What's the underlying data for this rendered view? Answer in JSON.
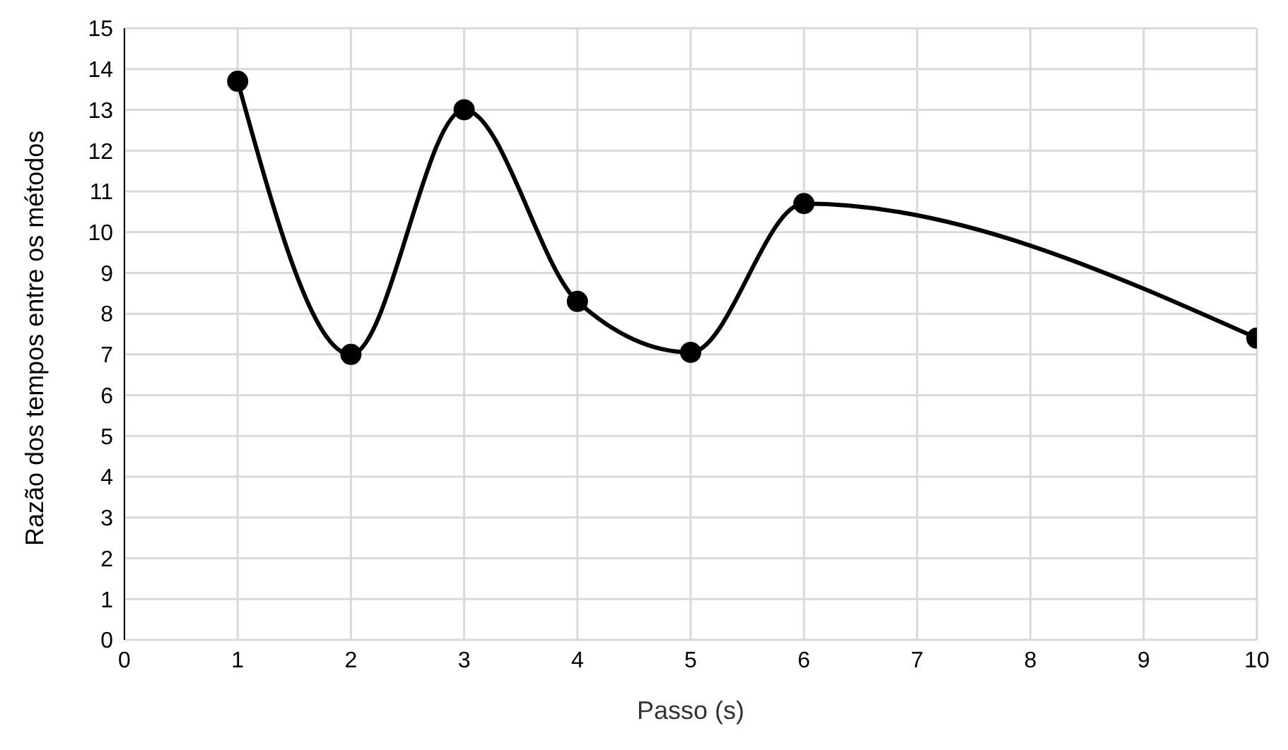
{
  "chart_data": {
    "type": "line",
    "xlabel": "Passo (s)",
    "ylabel": "Razão dos tempos entre os métodos",
    "x": [
      1,
      2,
      3,
      4,
      5,
      6,
      10
    ],
    "series": [
      {
        "color": "#000000",
        "values": [
          13.7,
          7.0,
          13.0,
          8.3,
          7.05,
          10.7,
          7.4
        ]
      }
    ],
    "xlim": [
      0,
      10
    ],
    "xticks": [
      0,
      1,
      2,
      3,
      4,
      5,
      6,
      7,
      8,
      9,
      10
    ],
    "ylim": [
      0,
      15
    ],
    "yticks": [
      0,
      1,
      2,
      3,
      4,
      5,
      6,
      7,
      8,
      9,
      10,
      11,
      12,
      13,
      14,
      15
    ],
    "grid": true,
    "marker": "circle",
    "line_style": "solid",
    "legend": false
  }
}
